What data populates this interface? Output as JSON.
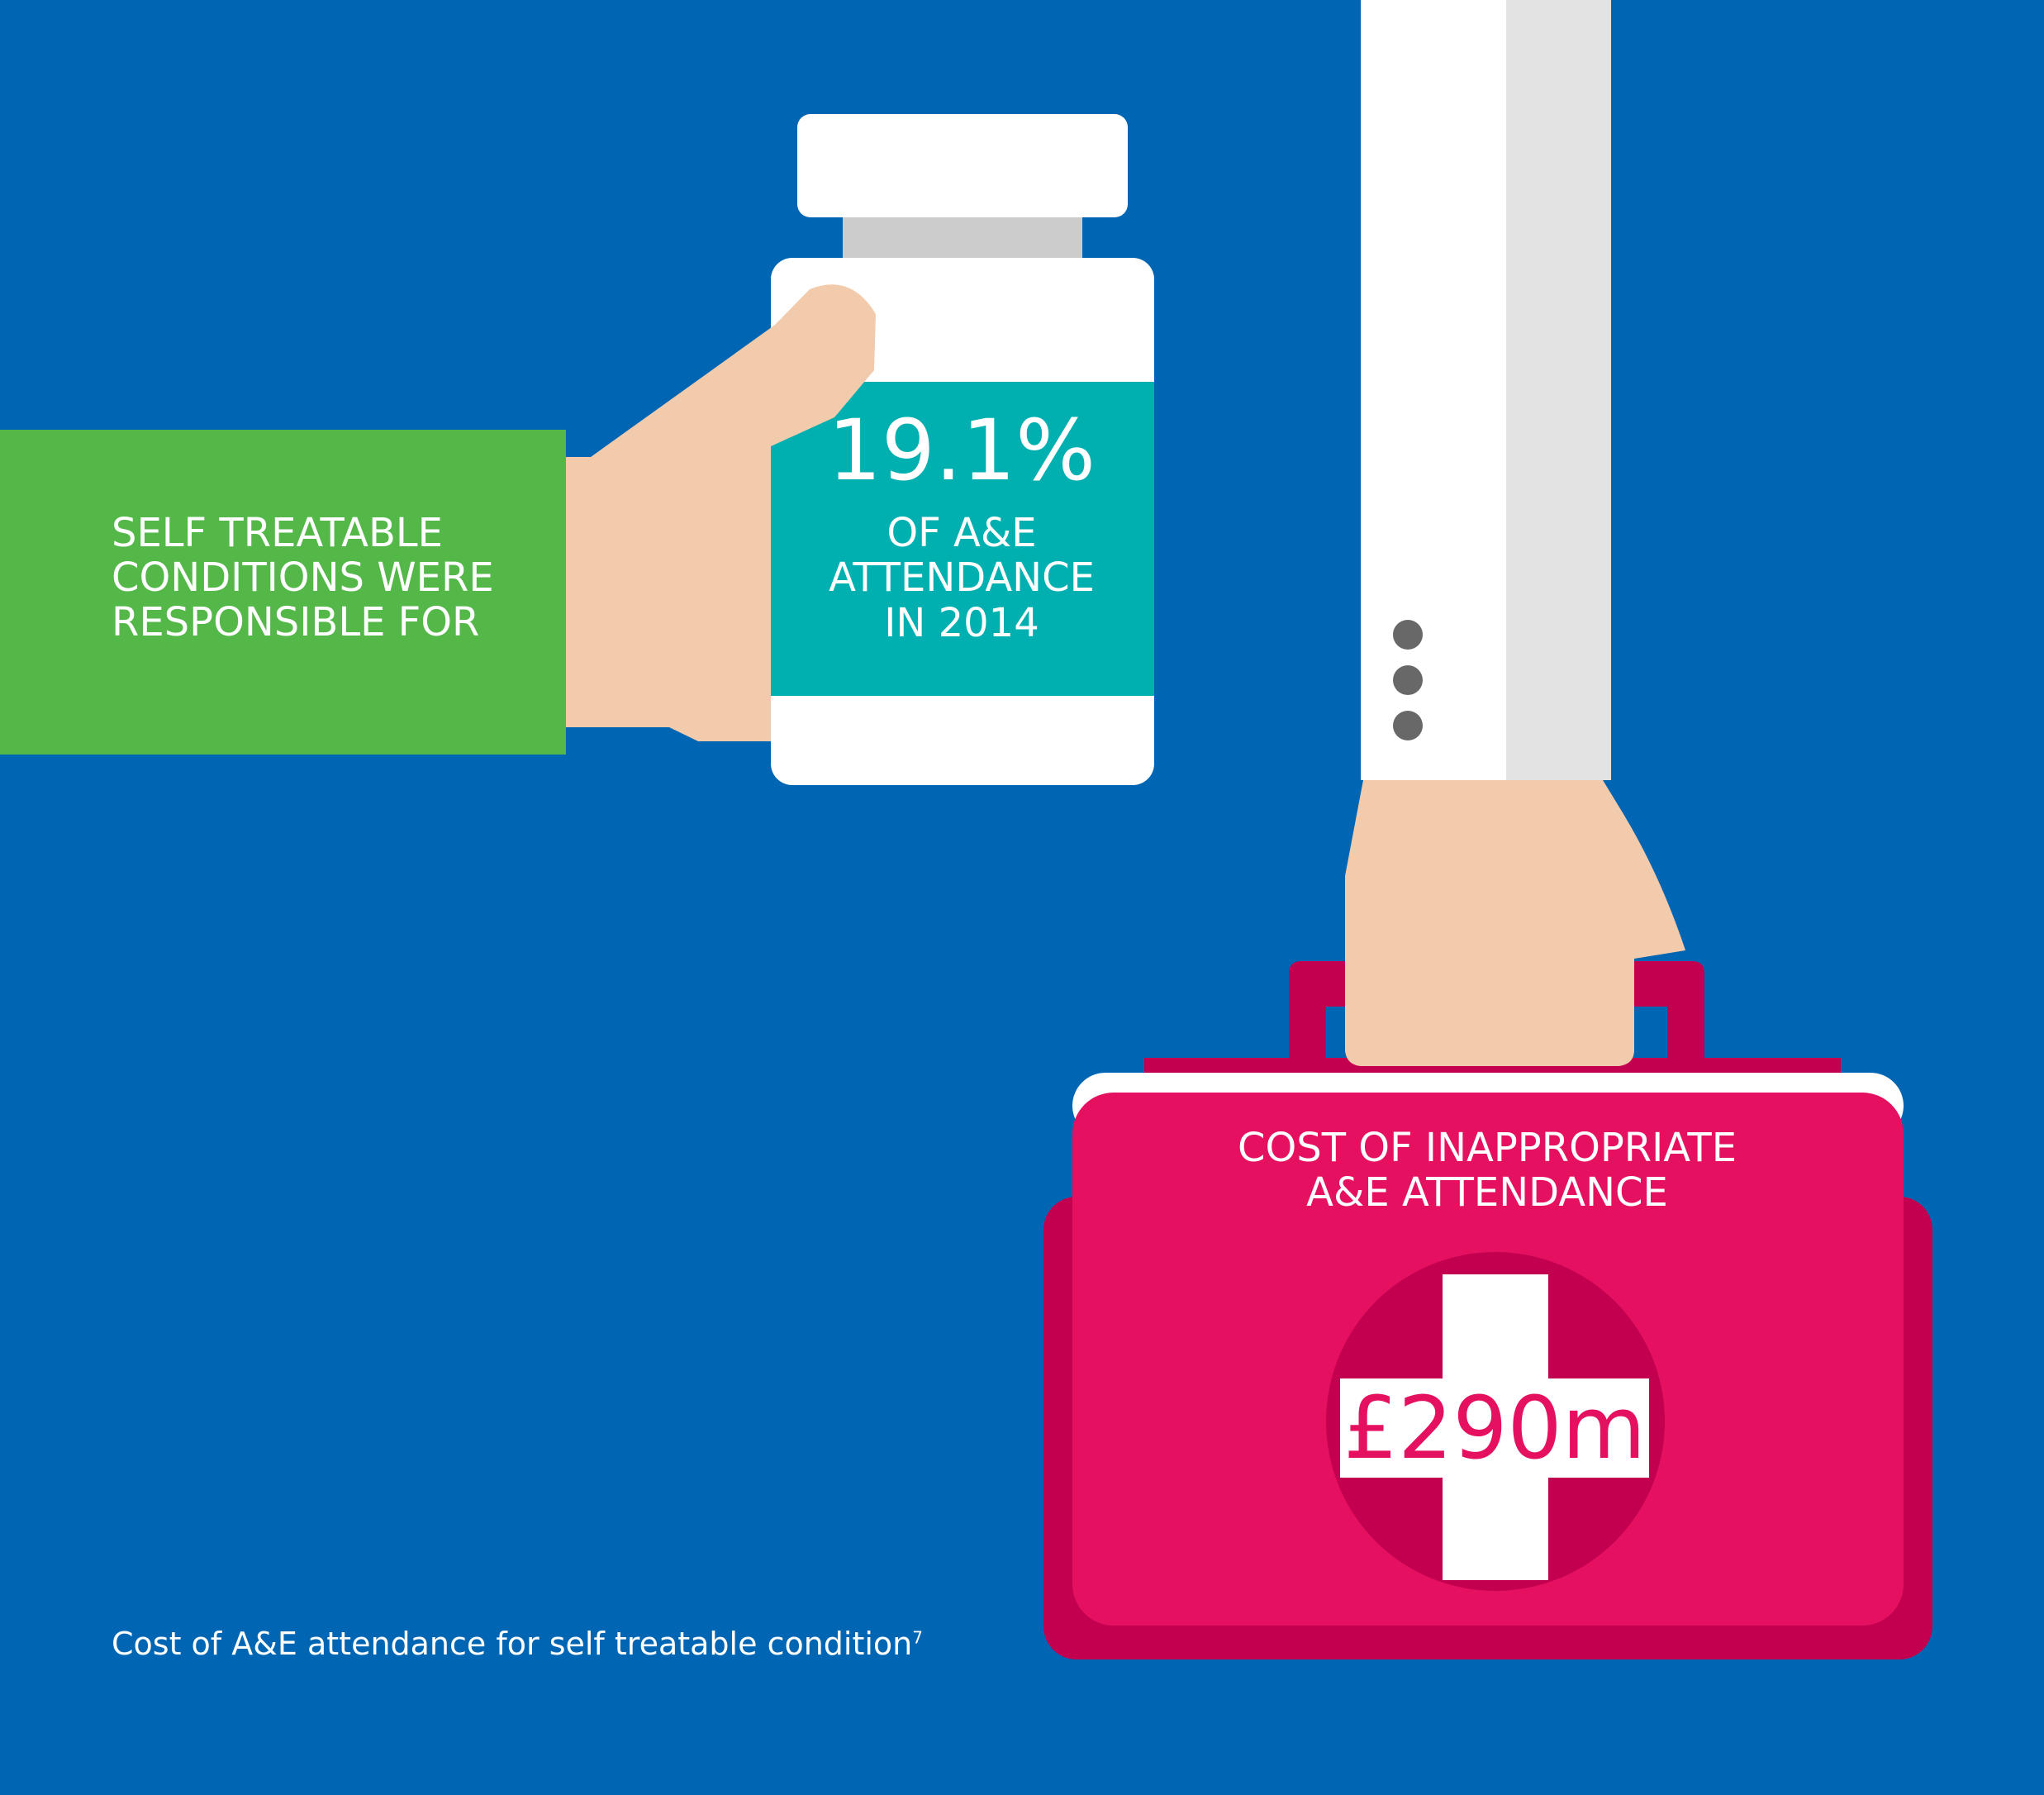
{
  "panel": {
    "line1": "SELF TREATABLE",
    "line2": "CONDITIONS WERE",
    "line3": "RESPONSIBLE FOR"
  },
  "bottle": {
    "stat": "19.1%",
    "line1": "OF A&E",
    "line2": "ATTENDANCE",
    "line3": "IN 2014"
  },
  "kit": {
    "title_line1": "COST OF INAPPROPRIATE",
    "title_line2": "A&E ATTENDANCE",
    "value": "£290m"
  },
  "footnote": {
    "text": "Cost of A&E attendance for self treatable condition",
    "ref": "7"
  },
  "colors": {
    "background": "#0066b3",
    "green_panel": "#53b848",
    "teal_label": "#00b0b0",
    "skin": "#f2cbac",
    "kit_pink": "#e5105f",
    "kit_dark_pink": "#c2004f",
    "white": "#ffffff",
    "sleeve_shade": "#e3e3e3",
    "button_grey": "#686868"
  },
  "icons": {
    "bottle": "medicine-bottle-icon",
    "hand_left": "hand-holding-bottle-icon",
    "arm_right": "arm-in-white-coat-icon",
    "kit": "first-aid-kit-icon",
    "cross": "medical-cross-icon"
  }
}
